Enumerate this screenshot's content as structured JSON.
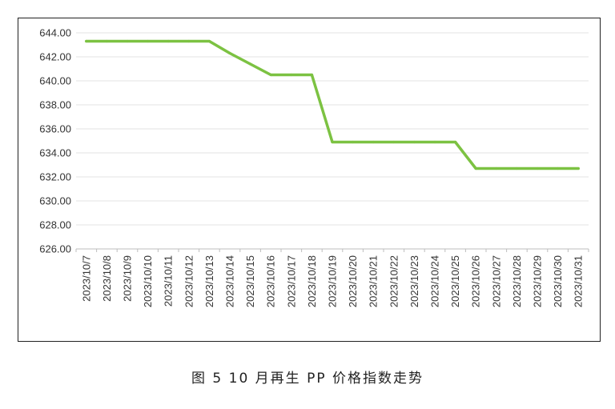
{
  "caption": "图 5  10 月再生 PP 价格指数走势",
  "chart_data": {
    "type": "line",
    "title": "",
    "xlabel": "",
    "ylabel": "",
    "ylim": [
      626,
      644
    ],
    "yticks": [
      "626.00",
      "628.00",
      "630.00",
      "632.00",
      "634.00",
      "636.00",
      "638.00",
      "640.00",
      "642.00",
      "644.00"
    ],
    "categories": [
      "2023/10/7",
      "2023/10/8",
      "2023/10/9",
      "2023/10/10",
      "2023/10/11",
      "2023/10/12",
      "2023/10/13",
      "2023/10/14",
      "2023/10/15",
      "2023/10/16",
      "2023/10/17",
      "2023/10/18",
      "2023/10/19",
      "2023/10/20",
      "2023/10/21",
      "2023/10/22",
      "2023/10/23",
      "2023/10/24",
      "2023/10/25",
      "2023/10/26",
      "2023/10/27",
      "2023/10/28",
      "2023/10/29",
      "2023/10/30",
      "2023/10/31"
    ],
    "series": [
      {
        "color": "#7cc242",
        "values": [
          643.3,
          643.3,
          643.3,
          643.3,
          643.3,
          643.3,
          643.3,
          642.3,
          641.4,
          640.5,
          640.5,
          640.5,
          634.9,
          634.9,
          634.9,
          634.9,
          634.9,
          634.9,
          634.9,
          632.7,
          632.7,
          632.7,
          632.7,
          632.7,
          632.7
        ]
      }
    ],
    "grid": true,
    "legend": "none"
  }
}
